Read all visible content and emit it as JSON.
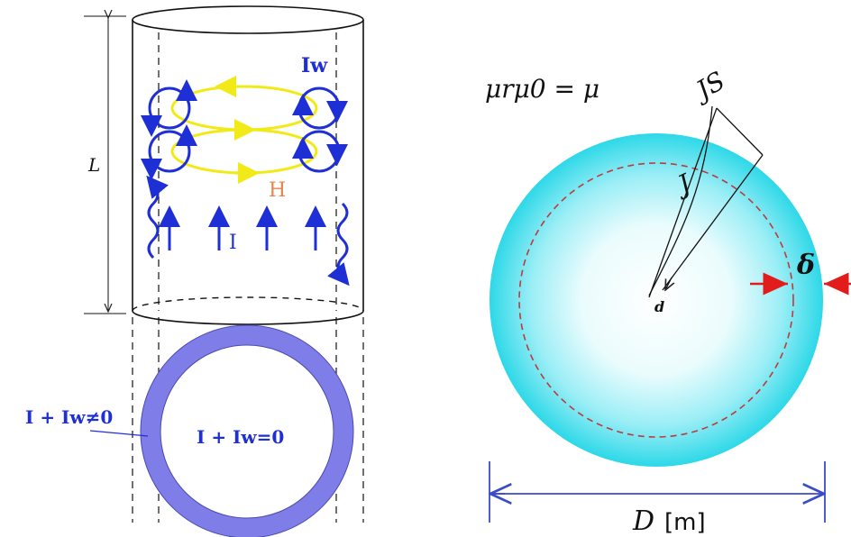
{
  "left_figure": {
    "length_label": "L",
    "eddy_label": "Iw",
    "field_label": "H",
    "current_label": "I",
    "ring_label_outer": "I + Iw≠0",
    "ring_label_inner": "I + Iw=0"
  },
  "right_figure": {
    "permeability_eq": "μrμ0 = μ",
    "surface_current_label": "JS",
    "current_density_label": "J",
    "depth_label": "d",
    "skin_depth_label": "δ",
    "diameter_label": "D",
    "diameter_unit": "[m]"
  },
  "colors": {
    "eddy_blue": "#1f2fd6",
    "field_yellow": "#f2ea18",
    "h_orange": "#e8834c",
    "ring_fill": "#7f7ee8",
    "conductor_cyan": "#2dd8e8",
    "dashed_red": "#c0393b",
    "arrow_red": "#e21b1b",
    "dim_blue": "#3a4cc8"
  }
}
